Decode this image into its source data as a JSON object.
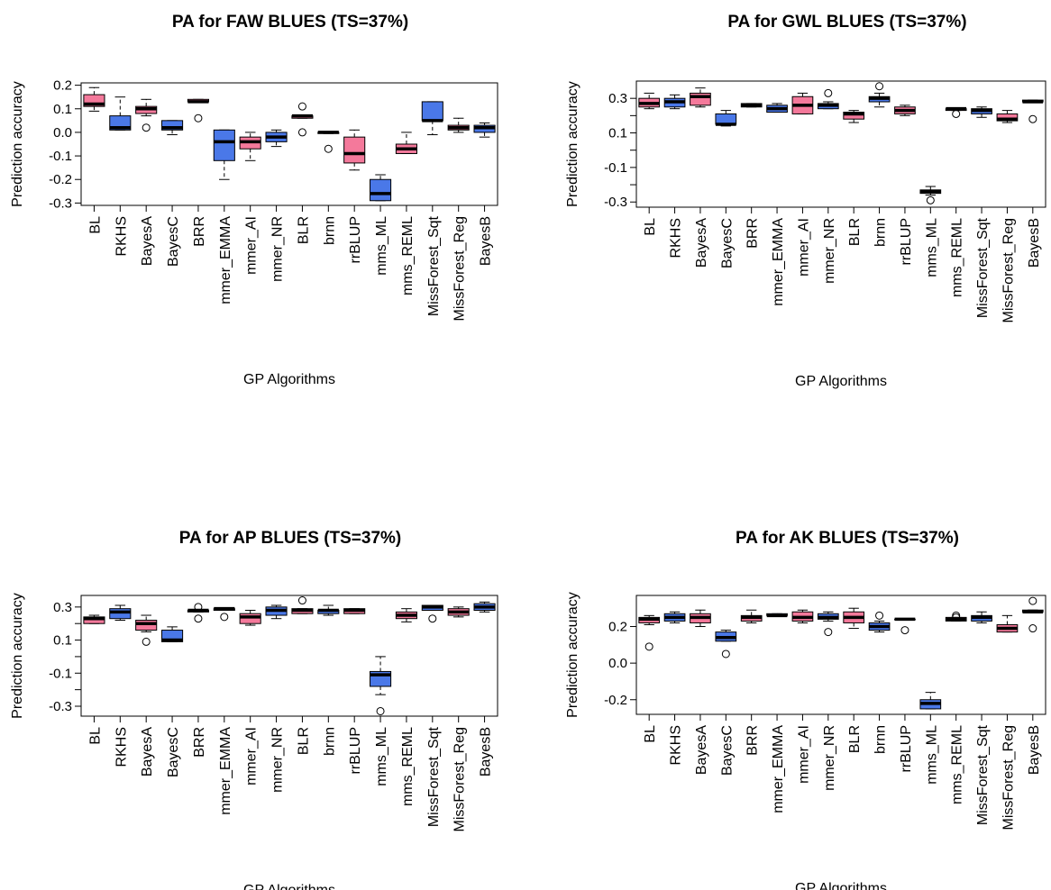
{
  "chart_data": [
    {
      "type": "box",
      "title": "PA for FAW BLUES (TS=37%)",
      "x_label": "GP Algorithms",
      "y_label": "Prediction accuracy",
      "categories": [
        "BL",
        "RKHS",
        "BayesA",
        "BayesC",
        "BRR",
        "mmer_EMMA",
        "mmer_AI",
        "mmer_NR",
        "BLR",
        "brnn",
        "rrBLUP",
        "mms_ML",
        "mms_REML",
        "MissForest_Sqt",
        "MissForest_Reg",
        "BayesB"
      ],
      "ylim": [
        -0.31,
        0.21
      ],
      "yticks": [
        -0.3,
        -0.2,
        -0.1,
        {
          "value": 0,
          "label": "0.0"
        },
        0.1,
        0.2
      ],
      "boxes": [
        {
          "min": 0.09,
          "q1": 0.11,
          "median": 0.12,
          "q3": 0.16,
          "max": 0.19,
          "outliers": [],
          "color": "#f4799b"
        },
        {
          "min": 0.01,
          "q1": 0.01,
          "median": 0.02,
          "q3": 0.07,
          "max": 0.15,
          "outliers": [],
          "color": "#4a78e8"
        },
        {
          "min": 0.07,
          "q1": 0.08,
          "median": 0.1,
          "q3": 0.11,
          "max": 0.14,
          "outliers": [
            0.02
          ],
          "color": "#f4799b"
        },
        {
          "min": -0.01,
          "q1": 0.01,
          "median": 0.02,
          "q3": 0.05,
          "max": 0.05,
          "outliers": [],
          "color": "#4a78e8"
        },
        {
          "min": 0.13,
          "q1": 0.13,
          "median": 0.13,
          "q3": 0.14,
          "max": 0.14,
          "outliers": [
            0.06
          ],
          "color": "#f4799b"
        },
        {
          "min": -0.2,
          "q1": -0.12,
          "median": -0.04,
          "q3": 0.01,
          "max": 0.01,
          "outliers": [],
          "color": "#4a78e8"
        },
        {
          "min": -0.12,
          "q1": -0.07,
          "median": -0.04,
          "q3": -0.02,
          "max": 0.0,
          "outliers": [],
          "color": "#f4799b"
        },
        {
          "min": -0.06,
          "q1": -0.04,
          "median": -0.02,
          "q3": 0.0,
          "max": 0.01,
          "outliers": [],
          "color": "#4a78e8"
        },
        {
          "min": 0.06,
          "q1": 0.06,
          "median": 0.07,
          "q3": 0.07,
          "max": 0.07,
          "outliers": [
            0.11,
            0.0
          ],
          "color": "#f4799b"
        },
        {
          "min": -0.005,
          "q1": -0.005,
          "median": 0.0,
          "q3": 0.0,
          "max": 0.0,
          "outliers": [
            -0.07
          ],
          "color": "#4a78e8"
        },
        {
          "min": -0.16,
          "q1": -0.13,
          "median": -0.09,
          "q3": -0.02,
          "max": 0.01,
          "outliers": [],
          "color": "#f4799b"
        },
        {
          "min": -0.29,
          "q1": -0.29,
          "median": -0.26,
          "q3": -0.2,
          "max": -0.18,
          "outliers": [],
          "color": "#4a78e8"
        },
        {
          "min": -0.09,
          "q1": -0.09,
          "median": -0.07,
          "q3": -0.05,
          "max": 0.0,
          "outliers": [],
          "color": "#f4799b"
        },
        {
          "min": -0.01,
          "q1": 0.05,
          "median": 0.05,
          "q3": 0.13,
          "max": 0.13,
          "outliers": [],
          "color": "#4a78e8"
        },
        {
          "min": 0.0,
          "q1": 0.01,
          "median": 0.02,
          "q3": 0.03,
          "max": 0.06,
          "outliers": [],
          "color": "#f4799b"
        },
        {
          "min": -0.02,
          "q1": 0.0,
          "median": 0.02,
          "q3": 0.03,
          "max": 0.04,
          "outliers": [],
          "color": "#4a78e8"
        }
      ]
    },
    {
      "type": "box",
      "title": "PA for GWL BLUES (TS=37%)",
      "x_label": "GP Algorithms",
      "y_label": "Prediction accuracy",
      "categories": [
        "BL",
        "RKHS",
        "BayesA",
        "BayesC",
        "BRR",
        "mmer_EMMA",
        "mmer_AI",
        "mmer_NR",
        "BLR",
        "brnn",
        "rrBLUP",
        "mms_ML",
        "mms_REML",
        "MissForest_Sqt",
        "MissForest_Reg",
        "BayesB"
      ],
      "ylim": [
        -0.33,
        0.4
      ],
      "yticks": [
        -0.3,
        -0.1,
        0.1,
        0.3
      ],
      "minor_yticks": [
        -0.2,
        0,
        0.2
      ],
      "boxes": [
        {
          "min": 0.24,
          "q1": 0.25,
          "median": 0.27,
          "q3": 0.3,
          "max": 0.33,
          "outliers": [],
          "color": "#f4799b"
        },
        {
          "min": 0.24,
          "q1": 0.25,
          "median": 0.28,
          "q3": 0.3,
          "max": 0.32,
          "outliers": [],
          "color": "#4a78e8"
        },
        {
          "min": 0.25,
          "q1": 0.26,
          "median": 0.31,
          "q3": 0.33,
          "max": 0.36,
          "outliers": [],
          "color": "#f4799b"
        },
        {
          "min": 0.14,
          "q1": 0.15,
          "median": 0.15,
          "q3": 0.21,
          "max": 0.23,
          "outliers": [],
          "color": "#4a78e8"
        },
        {
          "min": 0.25,
          "q1": 0.25,
          "median": 0.26,
          "q3": 0.27,
          "max": 0.27,
          "outliers": [],
          "color": "#f4799b"
        },
        {
          "min": 0.22,
          "q1": 0.22,
          "median": 0.24,
          "q3": 0.26,
          "max": 0.27,
          "outliers": [],
          "color": "#4a78e8"
        },
        {
          "min": 0.21,
          "q1": 0.21,
          "median": 0.26,
          "q3": 0.31,
          "max": 0.33,
          "outliers": [],
          "color": "#f4799b"
        },
        {
          "min": 0.24,
          "q1": 0.24,
          "median": 0.26,
          "q3": 0.27,
          "max": 0.28,
          "outliers": [
            0.33
          ],
          "color": "#4a78e8"
        },
        {
          "min": 0.16,
          "q1": 0.18,
          "median": 0.21,
          "q3": 0.22,
          "max": 0.23,
          "outliers": [],
          "color": "#f4799b"
        },
        {
          "min": 0.25,
          "q1": 0.28,
          "median": 0.3,
          "q3": 0.31,
          "max": 0.33,
          "outliers": [
            0.37
          ],
          "color": "#4a78e8"
        },
        {
          "min": 0.2,
          "q1": 0.21,
          "median": 0.23,
          "q3": 0.25,
          "max": 0.26,
          "outliers": [],
          "color": "#f4799b"
        },
        {
          "min": -0.26,
          "q1": -0.25,
          "median": -0.24,
          "q3": -0.23,
          "max": -0.21,
          "outliers": [
            -0.29
          ],
          "color": "#4a78e8"
        },
        {
          "min": 0.23,
          "q1": 0.23,
          "median": 0.24,
          "q3": 0.24,
          "max": 0.24,
          "outliers": [
            0.21
          ],
          "color": "#f4799b"
        },
        {
          "min": 0.19,
          "q1": 0.21,
          "median": 0.23,
          "q3": 0.24,
          "max": 0.25,
          "outliers": [],
          "color": "#4a78e8"
        },
        {
          "min": 0.16,
          "q1": 0.17,
          "median": 0.18,
          "q3": 0.21,
          "max": 0.23,
          "outliers": [],
          "color": "#f4799b"
        },
        {
          "min": 0.28,
          "q1": 0.28,
          "median": 0.28,
          "q3": 0.29,
          "max": 0.29,
          "outliers": [
            0.18
          ],
          "color": "#4a78e8"
        }
      ]
    },
    {
      "type": "box",
      "title": "PA for AP BLUES (TS=37%)",
      "x_label": "GP Algorithms",
      "y_label": "Prediction accuracy",
      "categories": [
        "BL",
        "RKHS",
        "BayesA",
        "BayesC",
        "BRR",
        "mmer_EMMA",
        "mmer_AI",
        "mmer_NR",
        "BLR",
        "brnn",
        "rrBLUP",
        "mms_ML",
        "mms_REML",
        "MissForest_Sqt",
        "MissForest_Reg",
        "BayesB"
      ],
      "ylim": [
        -0.36,
        0.37
      ],
      "yticks": [
        -0.3,
        -0.1,
        0.1,
        0.3
      ],
      "minor_yticks": [
        -0.2,
        0,
        0.2
      ],
      "boxes": [
        {
          "min": 0.2,
          "q1": 0.2,
          "median": 0.23,
          "q3": 0.24,
          "max": 0.25,
          "outliers": [],
          "color": "#f4799b"
        },
        {
          "min": 0.22,
          "q1": 0.23,
          "median": 0.27,
          "q3": 0.29,
          "max": 0.31,
          "outliers": [],
          "color": "#4a78e8"
        },
        {
          "min": 0.15,
          "q1": 0.16,
          "median": 0.2,
          "q3": 0.22,
          "max": 0.25,
          "outliers": [
            0.09
          ],
          "color": "#f4799b"
        },
        {
          "min": 0.09,
          "q1": 0.09,
          "median": 0.1,
          "q3": 0.16,
          "max": 0.18,
          "outliers": [],
          "color": "#4a78e8"
        },
        {
          "min": 0.27,
          "q1": 0.27,
          "median": 0.28,
          "q3": 0.28,
          "max": 0.28,
          "outliers": [
            0.3,
            0.23
          ],
          "color": "#f4799b"
        },
        {
          "min": 0.28,
          "q1": 0.28,
          "median": 0.29,
          "q3": 0.29,
          "max": 0.29,
          "outliers": [
            0.24
          ],
          "color": "#4a78e8"
        },
        {
          "min": 0.19,
          "q1": 0.2,
          "median": 0.24,
          "q3": 0.26,
          "max": 0.28,
          "outliers": [],
          "color": "#f4799b"
        },
        {
          "min": 0.23,
          "q1": 0.25,
          "median": 0.28,
          "q3": 0.3,
          "max": 0.31,
          "outliers": [],
          "color": "#4a78e8"
        },
        {
          "min": 0.26,
          "q1": 0.26,
          "median": 0.28,
          "q3": 0.29,
          "max": 0.29,
          "outliers": [
            0.34
          ],
          "color": "#f4799b"
        },
        {
          "min": 0.25,
          "q1": 0.26,
          "median": 0.28,
          "q3": 0.28,
          "max": 0.31,
          "outliers": [],
          "color": "#4a78e8"
        },
        {
          "min": 0.26,
          "q1": 0.26,
          "median": 0.28,
          "q3": 0.29,
          "max": 0.29,
          "outliers": [],
          "color": "#f4799b"
        },
        {
          "min": -0.23,
          "q1": -0.18,
          "median": -0.11,
          "q3": -0.09,
          "max": 0.0,
          "outliers": [
            -0.33
          ],
          "color": "#4a78e8"
        },
        {
          "min": 0.21,
          "q1": 0.23,
          "median": 0.25,
          "q3": 0.27,
          "max": 0.29,
          "outliers": [],
          "color": "#f4799b"
        },
        {
          "min": 0.28,
          "q1": 0.28,
          "median": 0.3,
          "q3": 0.31,
          "max": 0.31,
          "outliers": [
            0.23
          ],
          "color": "#4a78e8"
        },
        {
          "min": 0.24,
          "q1": 0.25,
          "median": 0.27,
          "q3": 0.29,
          "max": 0.3,
          "outliers": [],
          "color": "#f4799b"
        },
        {
          "min": 0.27,
          "q1": 0.28,
          "median": 0.3,
          "q3": 0.32,
          "max": 0.33,
          "outliers": [],
          "color": "#4a78e8"
        }
      ]
    },
    {
      "type": "box",
      "title": "PA for AK BLUES (TS=37%)",
      "x_label": "GP Algorithms",
      "y_label": "Prediction accuracy",
      "categories": [
        "BL",
        "RKHS",
        "BayesA",
        "BayesC",
        "BRR",
        "mmer_EMMA",
        "mmer_AI",
        "mmer_NR",
        "BLR",
        "brnn",
        "rrBLUP",
        "mms_ML",
        "mms_REML",
        "MissForest_Sqt",
        "MissForest_Reg",
        "BayesB"
      ],
      "ylim": [
        -0.28,
        0.37
      ],
      "yticks": [
        -0.2,
        {
          "value": 0,
          "label": "0.0"
        },
        0.2
      ],
      "boxes": [
        {
          "min": 0.21,
          "q1": 0.22,
          "median": 0.24,
          "q3": 0.25,
          "max": 0.26,
          "outliers": [
            0.09
          ],
          "color": "#f4799b"
        },
        {
          "min": 0.22,
          "q1": 0.23,
          "median": 0.25,
          "q3": 0.27,
          "max": 0.28,
          "outliers": [],
          "color": "#4a78e8"
        },
        {
          "min": 0.2,
          "q1": 0.22,
          "median": 0.25,
          "q3": 0.27,
          "max": 0.29,
          "outliers": [],
          "color": "#f4799b"
        },
        {
          "min": 0.12,
          "q1": 0.12,
          "median": 0.14,
          "q3": 0.17,
          "max": 0.18,
          "outliers": [
            0.05
          ],
          "color": "#4a78e8"
        },
        {
          "min": 0.22,
          "q1": 0.23,
          "median": 0.25,
          "q3": 0.26,
          "max": 0.29,
          "outliers": [],
          "color": "#f4799b"
        },
        {
          "min": 0.26,
          "q1": 0.26,
          "median": 0.26,
          "q3": 0.27,
          "max": 0.27,
          "outliers": [],
          "color": "#4a78e8"
        },
        {
          "min": 0.22,
          "q1": 0.23,
          "median": 0.25,
          "q3": 0.28,
          "max": 0.29,
          "outliers": [],
          "color": "#f4799b"
        },
        {
          "min": 0.23,
          "q1": 0.24,
          "median": 0.25,
          "q3": 0.27,
          "max": 0.28,
          "outliers": [
            0.17
          ],
          "color": "#4a78e8"
        },
        {
          "min": 0.19,
          "q1": 0.22,
          "median": 0.25,
          "q3": 0.28,
          "max": 0.3,
          "outliers": [],
          "color": "#f4799b"
        },
        {
          "min": 0.17,
          "q1": 0.18,
          "median": 0.2,
          "q3": 0.22,
          "max": 0.23,
          "outliers": [
            0.26
          ],
          "color": "#4a78e8"
        },
        {
          "min": 0.24,
          "q1": 0.24,
          "median": 0.24,
          "q3": 0.24,
          "max": 0.24,
          "outliers": [
            0.18
          ],
          "color": "#f4799b"
        },
        {
          "min": -0.25,
          "q1": -0.25,
          "median": -0.22,
          "q3": -0.2,
          "max": -0.16,
          "outliers": [],
          "color": "#4a78e8"
        },
        {
          "min": 0.23,
          "q1": 0.23,
          "median": 0.24,
          "q3": 0.25,
          "max": 0.25,
          "outliers": [
            0.26,
            0.25
          ],
          "color": "#f4799b"
        },
        {
          "min": 0.22,
          "q1": 0.23,
          "median": 0.25,
          "q3": 0.26,
          "max": 0.28,
          "outliers": [],
          "color": "#4a78e8"
        },
        {
          "min": 0.17,
          "q1": 0.17,
          "median": 0.19,
          "q3": 0.21,
          "max": 0.26,
          "outliers": [],
          "color": "#f4799b"
        },
        {
          "min": 0.28,
          "q1": 0.28,
          "median": 0.28,
          "q3": 0.29,
          "max": 0.29,
          "outliers": [
            0.34,
            0.19
          ],
          "color": "#4a78e8"
        }
      ]
    }
  ]
}
